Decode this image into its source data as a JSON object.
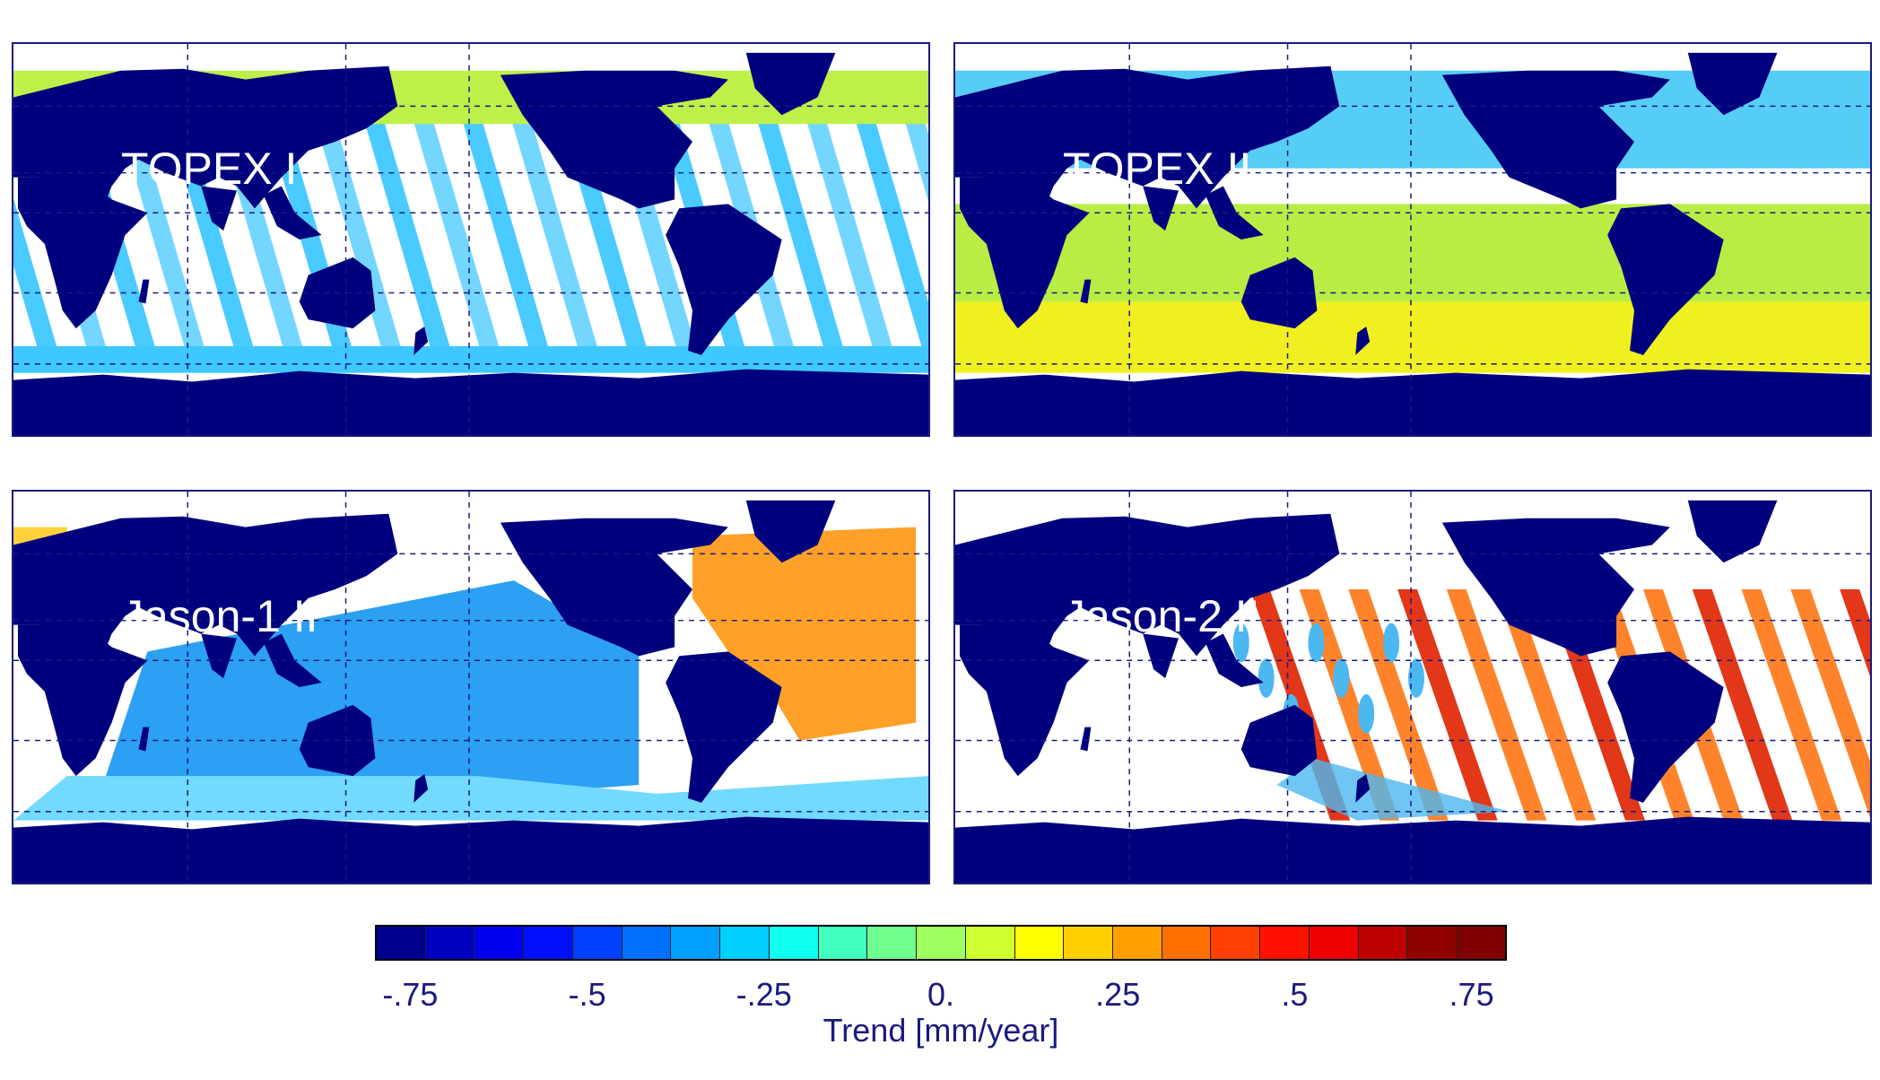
{
  "panels": [
    {
      "title": "TOPEX I",
      "pattern": "tracks",
      "base_colors": [
        "#7ff0a8",
        "#bff04a",
        "#6cd4ff",
        "#3fc8ff"
      ]
    },
    {
      "title": "TOPEX II",
      "pattern": "bands",
      "base_colors": [
        "#56cdf6",
        "#b8ee44",
        "#f0f020"
      ]
    },
    {
      "title": "Jason-1 II",
      "pattern": "basin",
      "base_colors": [
        "#2ca0f2",
        "#72d9ff",
        "#ffa028",
        "#ffd23c"
      ]
    },
    {
      "title": "Jason-2 II",
      "pattern": "tracks-strong",
      "base_colors": [
        "#ff7c20",
        "#e02c0c",
        "#4cb8f0",
        "#ffc830"
      ]
    }
  ],
  "colorbar": {
    "title": "Trend [mm/year]",
    "ticks": [
      "-.75",
      "-.5",
      "-.25",
      "0.",
      ".25",
      ".5",
      ".75"
    ],
    "tick_values": [
      -0.75,
      -0.5,
      -0.25,
      0.0,
      0.25,
      0.5,
      0.75
    ],
    "range": [
      -0.8,
      0.8
    ],
    "colors": [
      "#00008f",
      "#0000bf",
      "#0000ef",
      "#0010ff",
      "#0040ff",
      "#0070ff",
      "#00a0ff",
      "#00cfff",
      "#10ffef",
      "#40ffbf",
      "#70ff8f",
      "#a0ff60",
      "#cfff30",
      "#ffff00",
      "#ffcf00",
      "#ffa000",
      "#ff7000",
      "#ff4000",
      "#ff1000",
      "#ef0000",
      "#bf0000",
      "#8f0000",
      "#7f0000"
    ]
  },
  "colors": {
    "land": "#00007e",
    "frame": "#1a1a80",
    "grid": "#1a1a80",
    "label": "#1a1a80"
  }
}
